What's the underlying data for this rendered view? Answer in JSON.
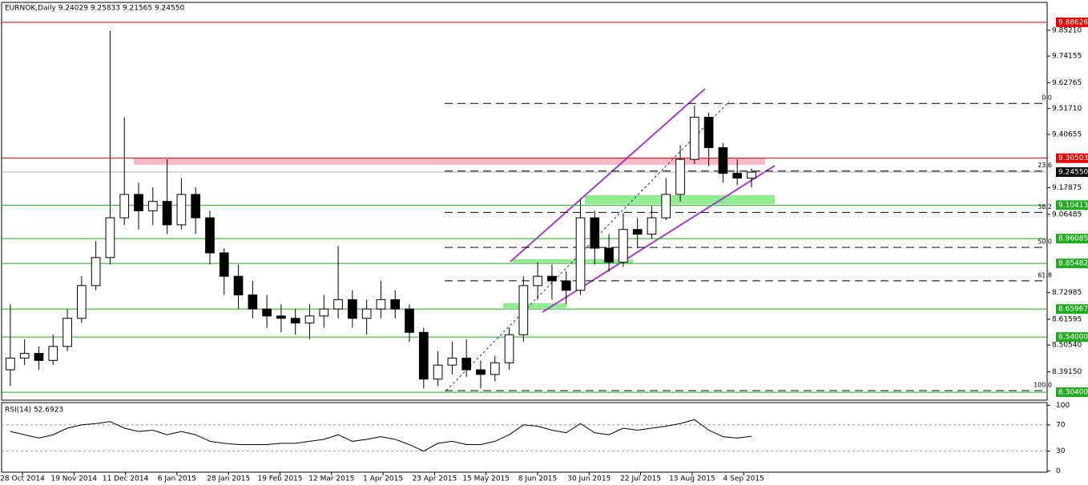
{
  "chart_data": {
    "type": "candlestick",
    "title": "EURNOK,Daily 9.24029 9.25833 9.21565 9.24550",
    "x_labels": [
      "28 Oct 2014",
      "19 Nov 2014",
      "11 Dec 2014",
      "6 Jan 2015",
      "28 Jan 2015",
      "19 Feb 2015",
      "12 Mar 2015",
      "1 Apr 2015",
      "23 Apr 2015",
      "15 May 2015",
      "8 Jun 2015",
      "30 Jun 2015",
      "22 Jul 2015",
      "13 Aug 2015",
      "4 Sep 2015"
    ],
    "open": [
      8.4,
      8.45,
      8.47,
      8.44,
      8.5,
      8.62,
      8.76,
      8.88,
      9.05,
      9.15,
      9.08,
      9.12,
      9.02,
      9.15,
      9.05,
      8.9,
      8.8,
      8.72,
      8.66,
      8.63,
      8.62,
      8.6,
      8.63,
      8.66,
      8.7,
      8.62,
      8.66,
      8.7,
      8.66,
      8.56,
      8.36,
      8.42,
      8.45,
      8.4,
      8.38,
      8.43,
      8.55,
      8.76,
      8.8,
      8.78,
      8.74,
      9.05,
      8.92,
      8.86,
      9.0,
      8.98,
      9.05,
      9.15,
      9.3,
      9.48,
      9.35,
      9.24,
      9.22
    ],
    "high": [
      8.68,
      8.53,
      8.5,
      8.55,
      8.66,
      8.8,
      8.95,
      9.85,
      9.48,
      9.2,
      9.18,
      9.3,
      9.22,
      9.18,
      9.08,
      8.92,
      8.85,
      8.78,
      8.72,
      8.68,
      8.66,
      8.68,
      8.72,
      8.93,
      8.74,
      8.7,
      8.78,
      8.74,
      8.68,
      8.58,
      8.48,
      8.52,
      8.53,
      8.44,
      8.46,
      8.58,
      8.8,
      8.86,
      8.85,
      8.82,
      9.13,
      9.08,
      8.98,
      9.07,
      9.05,
      9.1,
      9.22,
      9.36,
      9.53,
      9.5,
      9.37,
      9.3,
      9.26
    ],
    "low": [
      8.33,
      8.42,
      8.4,
      8.42,
      8.48,
      8.6,
      8.74,
      8.85,
      9.02,
      9.0,
      9.02,
      8.98,
      9.0,
      8.98,
      8.85,
      8.72,
      8.66,
      8.62,
      8.58,
      8.56,
      8.55,
      8.53,
      8.58,
      8.62,
      8.58,
      8.55,
      8.62,
      8.62,
      8.52,
      8.32,
      8.33,
      8.38,
      8.37,
      8.32,
      8.35,
      8.4,
      8.52,
      8.7,
      8.7,
      8.68,
      8.72,
      8.85,
      8.82,
      8.84,
      8.92,
      8.96,
      9.04,
      9.12,
      9.28,
      9.27,
      9.2,
      9.19,
      9.18
    ],
    "close": [
      8.45,
      8.47,
      8.44,
      8.5,
      8.62,
      8.76,
      8.88,
      9.05,
      9.15,
      9.08,
      9.12,
      9.02,
      9.15,
      9.05,
      8.9,
      8.8,
      8.72,
      8.66,
      8.63,
      8.62,
      8.6,
      8.63,
      8.66,
      8.7,
      8.62,
      8.66,
      8.7,
      8.66,
      8.56,
      8.36,
      8.42,
      8.45,
      8.4,
      8.38,
      8.43,
      8.55,
      8.76,
      8.8,
      8.78,
      8.74,
      9.05,
      8.92,
      8.86,
      9.0,
      8.98,
      9.05,
      9.15,
      9.3,
      9.48,
      9.35,
      9.24,
      9.22,
      9.2455
    ],
    "ylim": [
      8.27,
      9.9713
    ],
    "yticks": [
      {
        "value": 9.8521,
        "label": "9.85210"
      },
      9.74155,
      9.62765,
      {
        "value": 9.5171,
        "label": "9.51710"
      },
      9.40655,
      9.17875,
      9.06485,
      8.72985,
      8.61595,
      {
        "value": 8.5054,
        "label": "8.50540"
      },
      {
        "value": 8.3915,
        "label": "8.39150"
      }
    ],
    "levels": [
      {
        "value": 9.88626,
        "color": "#e00000"
      },
      {
        "value": 9.30503,
        "color": "#e00000"
      },
      {
        "value": 9.2455,
        "label": "9.24550",
        "color": "#000000"
      },
      {
        "value": 9.10413,
        "color": "#22aa22"
      },
      {
        "value": 8.96085,
        "color": "#22aa22"
      },
      {
        "value": 8.85482,
        "color": "#22aa22"
      },
      {
        "value": 8.65967,
        "color": "#22aa22"
      },
      {
        "value": 8.54,
        "label": "8.54000",
        "color": "#22aa22"
      },
      {
        "value": 8.304,
        "label": "8.30400",
        "color": "#22aa22"
      }
    ],
    "fib_levels": [
      {
        "label": "0.0",
        "price": 9.5392
      },
      {
        "label": "23.6",
        "price": 9.25
      },
      {
        "label": "38.2",
        "price": 9.0731
      },
      {
        "label": "50.0",
        "price": 8.9234
      },
      {
        "label": "61.8",
        "price": 8.7804
      },
      {
        "label": "100.0",
        "price": 8.3108
      }
    ],
    "rsi": {
      "title": "RSI(14) 52.6923",
      "ylim": [
        -2,
        104
      ],
      "yticks": [
        100,
        70,
        30,
        0
      ],
      "dashed": [
        70,
        30
      ],
      "values": [
        60,
        55,
        50,
        55,
        65,
        70,
        72,
        75,
        65,
        60,
        62,
        55,
        60,
        55,
        45,
        42,
        40,
        40,
        40,
        42,
        42,
        45,
        48,
        55,
        45,
        48,
        52,
        48,
        40,
        30,
        42,
        45,
        40,
        40,
        45,
        55,
        70,
        68,
        62,
        58,
        72,
        58,
        55,
        65,
        62,
        65,
        68,
        72,
        78,
        62,
        52,
        50,
        52.69
      ]
    }
  }
}
